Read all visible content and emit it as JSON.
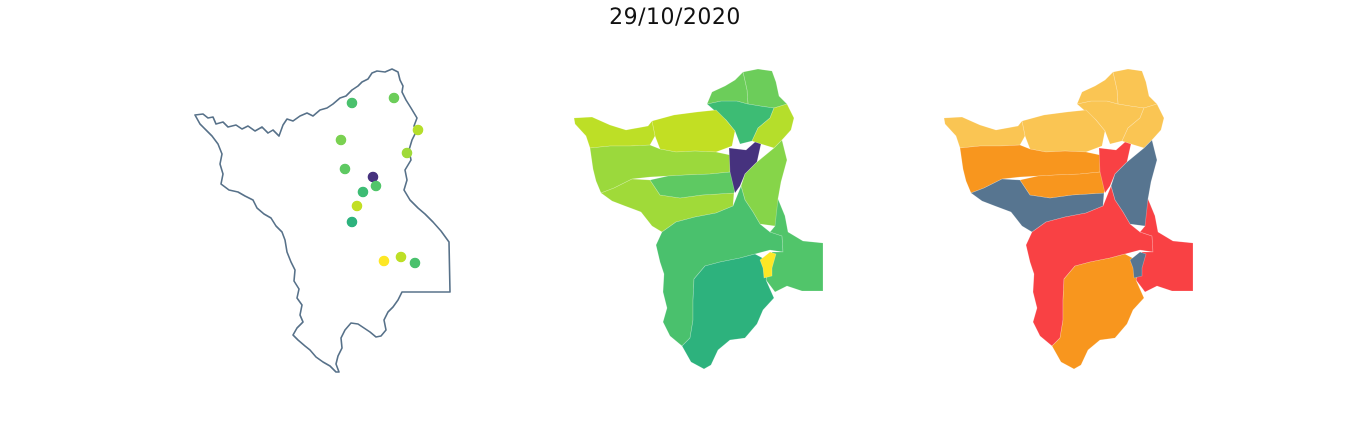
{
  "title": "29/10/2020",
  "map_data": {
    "panels": [
      {
        "id": "stations",
        "type": "point-map",
        "outline_color": "#577189",
        "point_colors": [
          "#4ac16d",
          "#6ccd5a",
          "#b5de2b",
          "#7ad151",
          "#a0da39",
          "#46327e",
          "#3dbc74",
          "#5ec962",
          "#c2df23",
          "#51c56a",
          "#2db27d",
          "#fde725",
          "#bddf26",
          "#4ac16d"
        ]
      },
      {
        "id": "viridis-regions",
        "type": "choropleth",
        "colormap": "viridis",
        "colors": [
          "#6ccd5a",
          "#3dbc74",
          "#b5de2b",
          "#c2df23",
          "#bddf26",
          "#9bd93c",
          "#a0da39",
          "#5ec962",
          "#46327e",
          "#86d549",
          "#4ac16d",
          "#51c56a",
          "#2db27d",
          "#6ccd5a",
          "#fde725"
        ]
      },
      {
        "id": "category-regions",
        "type": "choropleth",
        "category_colors": [
          "#fac553",
          "#577590",
          "#f94144",
          "#f8961e"
        ],
        "colors": [
          "#fac553",
          "#fac553",
          "#fac553",
          "#fac553",
          "#fac553",
          "#f8961e",
          "#577590",
          "#f8961e",
          "#f94144",
          "#577590",
          "#f94144",
          "#f94144",
          "#f8961e",
          "#fac553",
          "#577590"
        ]
      }
    ]
  }
}
